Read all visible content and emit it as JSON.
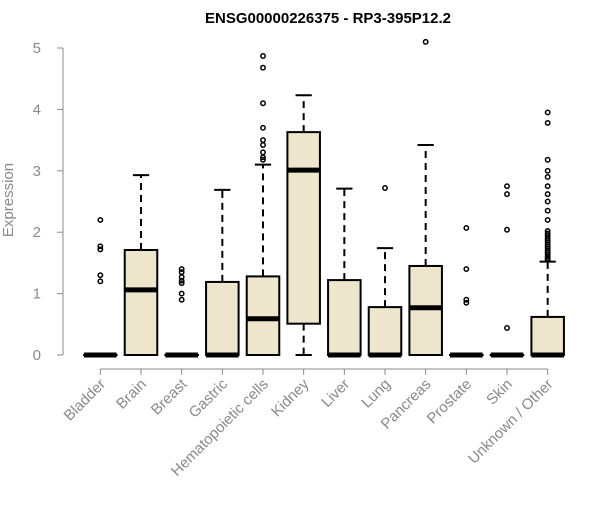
{
  "chart_data": {
    "type": "boxplot",
    "title": "ENSG00000226375 - RP3-395P12.2",
    "xlabel": "",
    "ylabel": "Expression",
    "ylim": [
      0,
      5
    ],
    "yticks": [
      0,
      1,
      2,
      3,
      4,
      5
    ],
    "grid": false,
    "legend": "none",
    "colors": {
      "box_fill": "#ede6cc",
      "stroke": "#000000",
      "axis_text": "#8a8a8a"
    },
    "categories": [
      "Bladder",
      "Brain",
      "Breast",
      "Gastric",
      "Hematopoietic cells",
      "Kidney",
      "Liver",
      "Lung",
      "Pancreas",
      "Prostate",
      "Skin",
      "Unknown / Other"
    ],
    "boxes": [
      {
        "min": 0,
        "q1": 0,
        "median": 0,
        "q3": 0,
        "max": 0,
        "outliers": [
          2.2,
          1.77,
          1.72,
          1.3,
          1.2
        ]
      },
      {
        "min": 0,
        "q1": 0,
        "median": 1.06,
        "q3": 1.71,
        "max": 2.93,
        "outliers": []
      },
      {
        "min": 0,
        "q1": 0,
        "median": 0,
        "q3": 0,
        "max": 0,
        "outliers": [
          1.4,
          1.35,
          1.27,
          1.21,
          1.17,
          1.0,
          0.9
        ]
      },
      {
        "min": 0,
        "q1": 0,
        "median": 0,
        "q3": 1.19,
        "max": 2.69,
        "outliers": []
      },
      {
        "min": 0,
        "q1": 0,
        "median": 0.59,
        "q3": 1.28,
        "max": 3.1,
        "outliers": [
          4.87,
          4.68,
          4.1,
          3.7,
          3.5,
          3.42,
          3.3,
          3.22,
          3.18
        ]
      },
      {
        "min": 0,
        "q1": 0.51,
        "median": 3.01,
        "q3": 3.63,
        "max": 4.23,
        "outliers": []
      },
      {
        "min": 0,
        "q1": 0,
        "median": 0,
        "q3": 1.22,
        "max": 2.71,
        "outliers": []
      },
      {
        "min": 0,
        "q1": 0,
        "median": 0,
        "q3": 0.78,
        "max": 1.74,
        "outliers": [
          2.72
        ]
      },
      {
        "min": 0,
        "q1": 0,
        "median": 0.77,
        "q3": 1.45,
        "max": 3.42,
        "outliers": [
          5.1
        ]
      },
      {
        "min": 0,
        "q1": 0,
        "median": 0,
        "q3": 0,
        "max": 0,
        "outliers": [
          2.07,
          1.4,
          0.9,
          0.85
        ]
      },
      {
        "min": 0,
        "q1": 0,
        "median": 0,
        "q3": 0,
        "max": 0,
        "outliers": [
          2.75,
          2.62,
          2.04,
          0.44
        ]
      },
      {
        "min": 0,
        "q1": 0,
        "median": 0,
        "q3": 0.62,
        "max": 1.52,
        "outliers": [
          3.95,
          3.78,
          3.18,
          3.0,
          2.9,
          2.75,
          2.62,
          2.5,
          2.35,
          2.2,
          2.02,
          1.98,
          1.94,
          1.9,
          1.87,
          1.84,
          1.8,
          1.77,
          1.74,
          1.7,
          1.67,
          1.64,
          1.6,
          1.57,
          1.55
        ]
      }
    ]
  }
}
